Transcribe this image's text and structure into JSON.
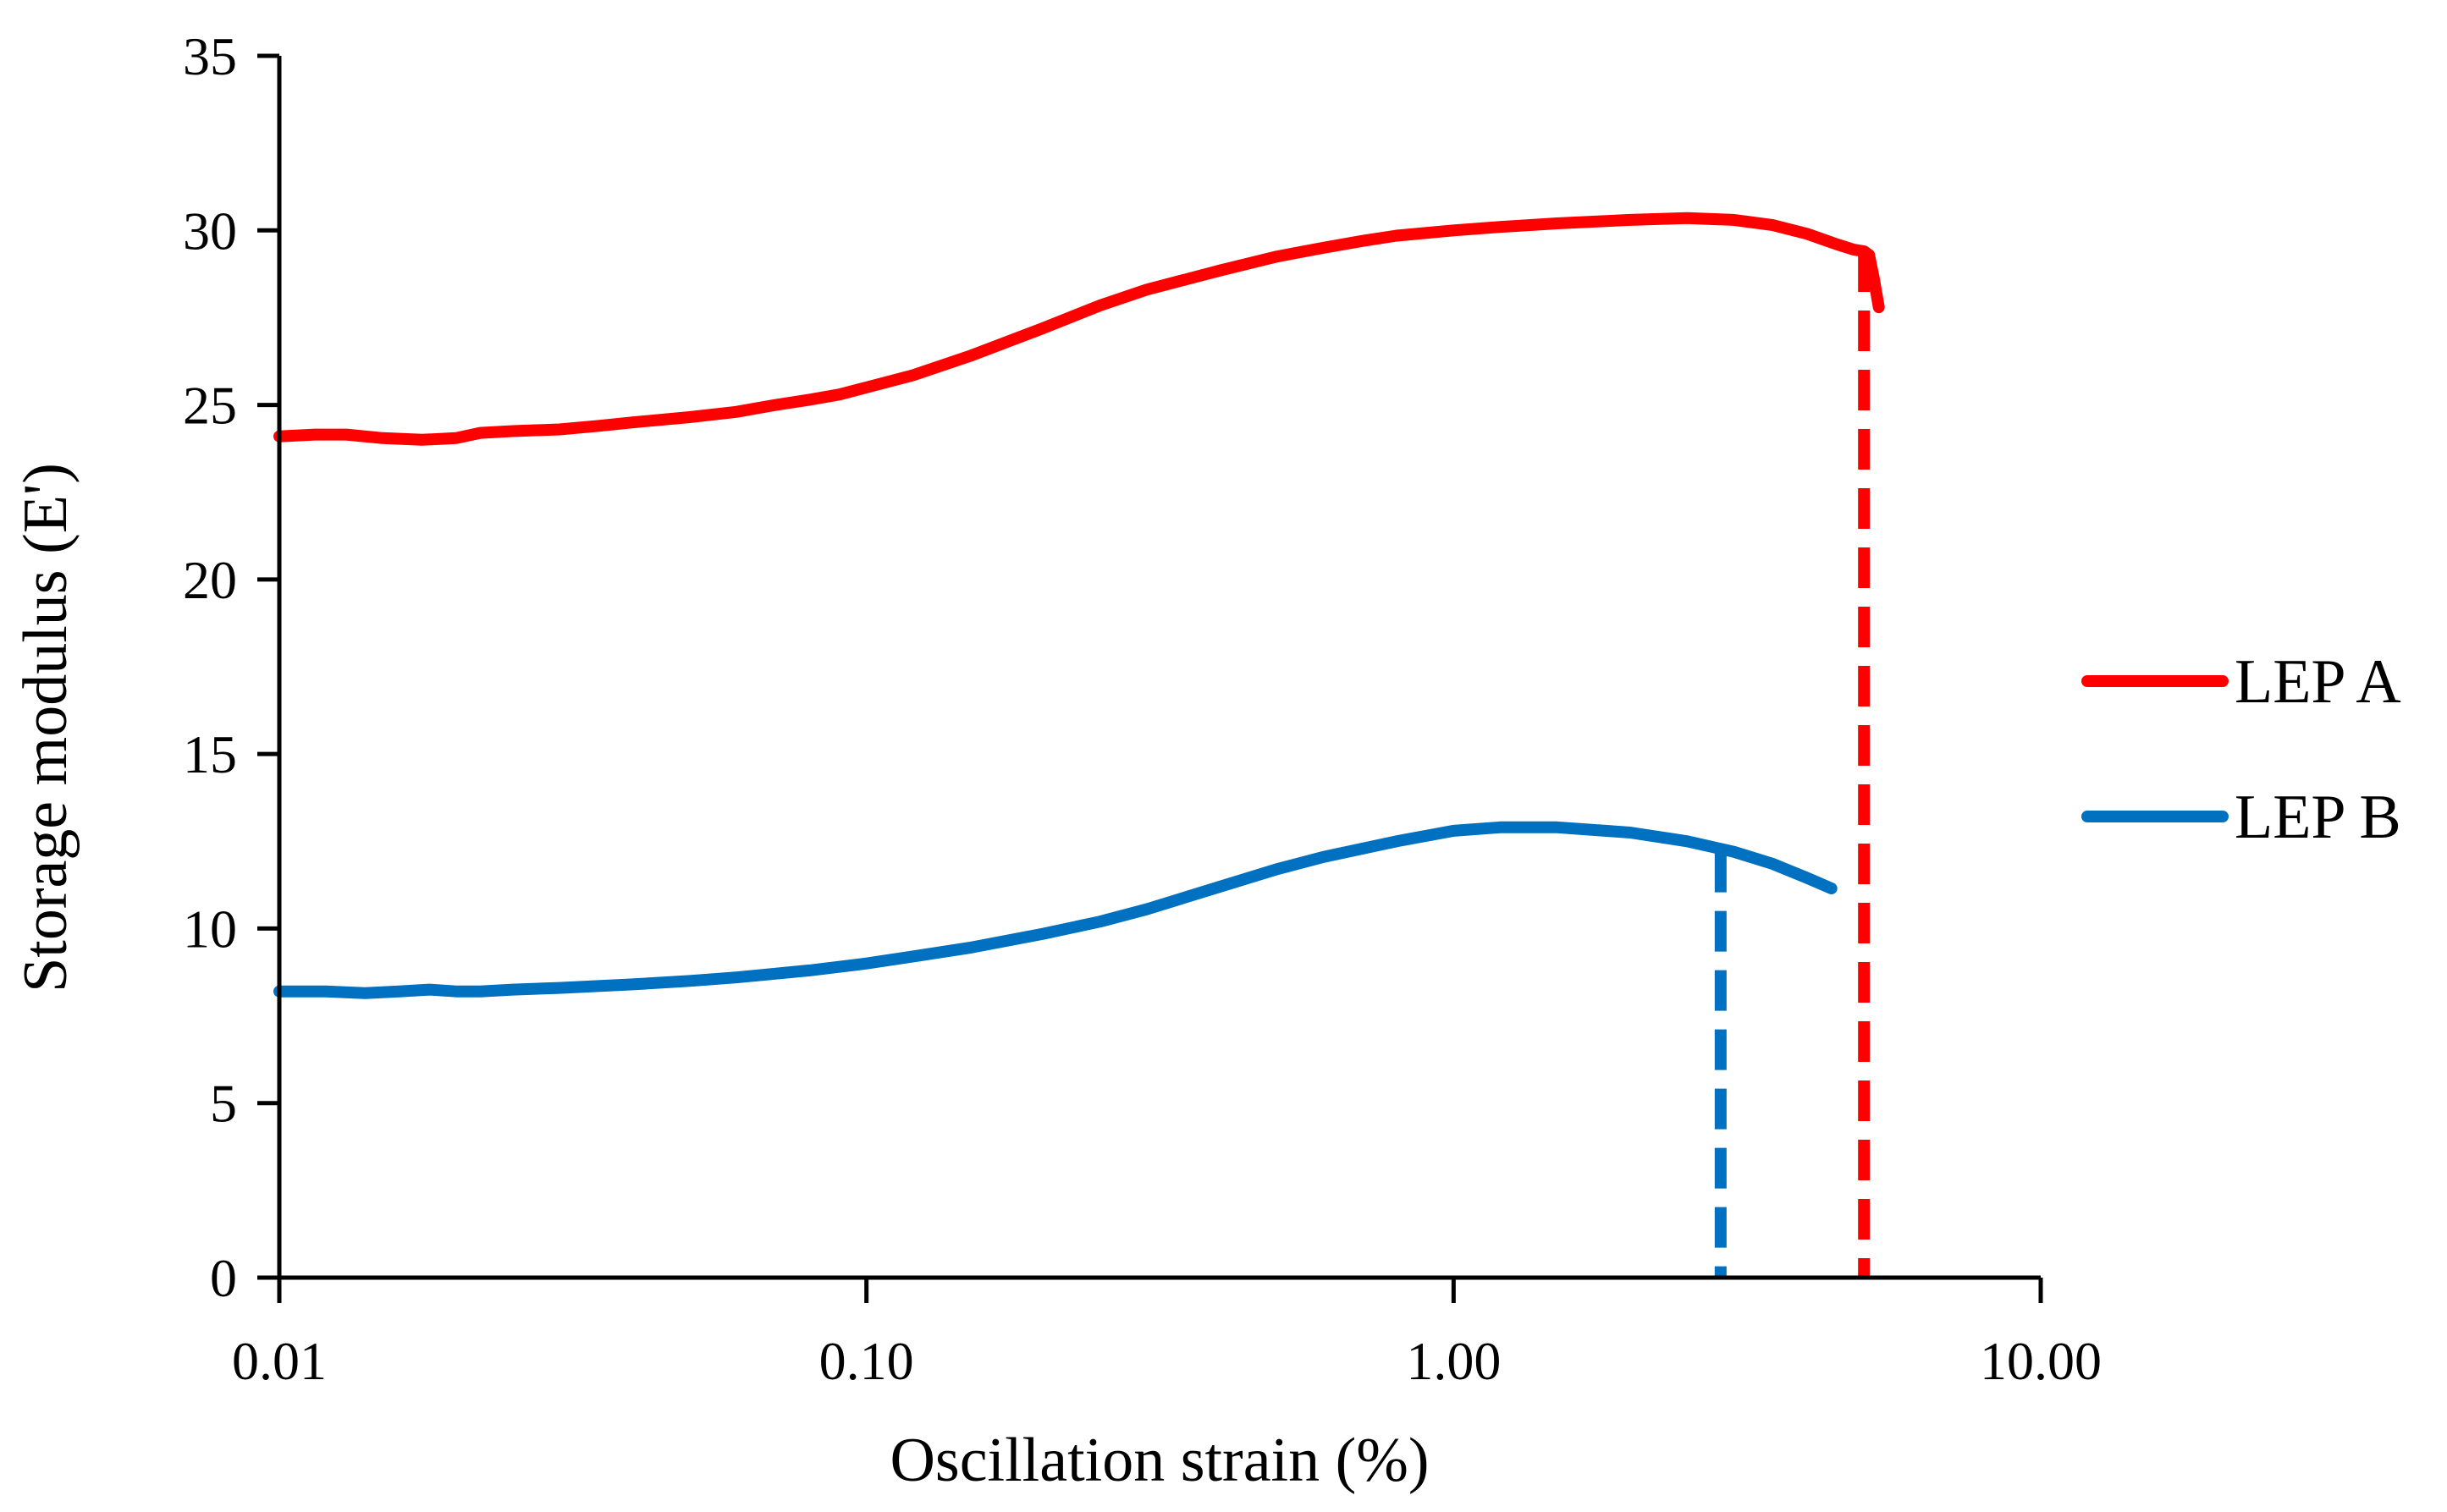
{
  "chart_data": {
    "type": "line",
    "title": "",
    "xlabel": "Oscillation strain (%)",
    "ylabel": "Storage modulus (E')",
    "xscale": "log",
    "xlim": [
      0.01,
      10
    ],
    "ylim": [
      0,
      35
    ],
    "x_ticks": [
      {
        "value": 0.01,
        "label": "0.01"
      },
      {
        "value": 0.1,
        "label": "0.10"
      },
      {
        "value": 1,
        "label": "1.00"
      },
      {
        "value": 10,
        "label": "10.00"
      }
    ],
    "y_ticks": [
      {
        "value": 0,
        "label": "0"
      },
      {
        "value": 5,
        "label": "5"
      },
      {
        "value": 10,
        "label": "10"
      },
      {
        "value": 15,
        "label": "15"
      },
      {
        "value": 20,
        "label": "20"
      },
      {
        "value": 25,
        "label": "25"
      },
      {
        "value": 30,
        "label": "30"
      },
      {
        "value": 35,
        "label": "35"
      }
    ],
    "grid": false,
    "legend_position": "right",
    "series": [
      {
        "name": "LEP A",
        "color": "#ff0000",
        "x": [
          0.01,
          0.0115,
          0.013,
          0.015,
          0.0175,
          0.02,
          0.022,
          0.025,
          0.03,
          0.035,
          0.04,
          0.05,
          0.06,
          0.07,
          0.08,
          0.09,
          0.1,
          0.12,
          0.15,
          0.2,
          0.25,
          0.3,
          0.4,
          0.5,
          0.6,
          0.7,
          0.8,
          1.0,
          1.2,
          1.5,
          2.0,
          2.5,
          3.0,
          3.5,
          4.0,
          4.5,
          4.8,
          5.0,
          5.1,
          5.2,
          5.3
        ],
        "values": [
          24.1,
          24.15,
          24.15,
          24.05,
          24.0,
          24.05,
          24.2,
          24.25,
          24.3,
          24.4,
          24.5,
          24.65,
          24.8,
          25.0,
          25.15,
          25.3,
          25.5,
          25.85,
          26.4,
          27.2,
          27.85,
          28.3,
          28.85,
          29.25,
          29.5,
          29.7,
          29.85,
          30.0,
          30.1,
          30.2,
          30.3,
          30.35,
          30.3,
          30.15,
          29.9,
          29.6,
          29.45,
          29.4,
          29.3,
          28.6,
          27.8
        ]
      },
      {
        "name": "LEP B",
        "color": "#0070c0",
        "x": [
          0.01,
          0.012,
          0.014,
          0.016,
          0.018,
          0.02,
          0.022,
          0.025,
          0.03,
          0.04,
          0.05,
          0.06,
          0.08,
          0.1,
          0.12,
          0.15,
          0.2,
          0.25,
          0.3,
          0.4,
          0.5,
          0.6,
          0.8,
          1.0,
          1.2,
          1.5,
          2.0,
          2.5,
          3.0,
          3.5,
          4.0,
          4.4
        ],
        "values": [
          8.2,
          8.2,
          8.15,
          8.2,
          8.25,
          8.2,
          8.2,
          8.25,
          8.3,
          8.4,
          8.5,
          8.6,
          8.8,
          9.0,
          9.2,
          9.45,
          9.85,
          10.2,
          10.55,
          11.2,
          11.7,
          12.05,
          12.5,
          12.8,
          12.9,
          12.9,
          12.75,
          12.5,
          12.2,
          11.85,
          11.45,
          11.15
        ]
      }
    ],
    "markers": [
      {
        "series": "LEP A",
        "x": 5.0,
        "y_top": 29.4,
        "style": "dashed",
        "color": "#ff0000"
      },
      {
        "series": "LEP B",
        "x": 2.85,
        "y_top": 12.2,
        "style": "dashed",
        "color": "#0070c0"
      }
    ]
  }
}
